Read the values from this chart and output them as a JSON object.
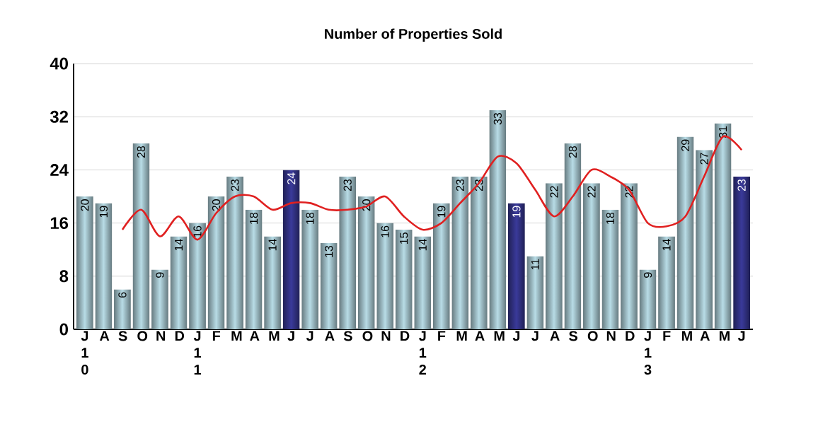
{
  "chart_data": {
    "type": "bar",
    "title": "Number of Properties Sold",
    "categories": [
      "J 1 0",
      "A",
      "S",
      "O",
      "N",
      "D",
      "J 1 1",
      "F",
      "M",
      "A",
      "M",
      "J",
      "J",
      "A",
      "S",
      "O",
      "N",
      "D",
      "J 1 2",
      "F",
      "M",
      "A",
      "M",
      "J",
      "J",
      "A",
      "S",
      "O",
      "N",
      "D",
      "J 1 3",
      "F",
      "M",
      "A",
      "M",
      "J"
    ],
    "series": [
      {
        "values": [
          20,
          19,
          6,
          28,
          9,
          14,
          16,
          20,
          23,
          18,
          14,
          24,
          18,
          13,
          23,
          20,
          16,
          15,
          14,
          19,
          23,
          23,
          33,
          19,
          11,
          22,
          28,
          22,
          18,
          22,
          9,
          14,
          29,
          27,
          31,
          23
        ],
        "value_labels": [
          "20",
          "19",
          "6",
          "28",
          "9",
          "14",
          "16",
          "20",
          "23",
          "18",
          "14",
          "24",
          "18",
          "13",
          "23",
          "20",
          "16",
          "15",
          "14",
          "19",
          "23",
          "23",
          "33",
          "19",
          "11",
          "22",
          "28",
          "22",
          "18",
          "22",
          "9",
          "14",
          "29",
          "27",
          "31",
          "23"
        ],
        "colors": [
          "#b8dce6",
          "#b8dce6",
          "#b8dce6",
          "#b8dce6",
          "#b8dce6",
          "#b8dce6",
          "#b8dce6",
          "#b8dce6",
          "#b8dce6",
          "#b8dce6",
          "#b8dce6",
          "#3a3a9a",
          "#b8dce6",
          "#b8dce6",
          "#b8dce6",
          "#b8dce6",
          "#b8dce6",
          "#b8dce6",
          "#b8dce6",
          "#b8dce6",
          "#b8dce6",
          "#b8dce6",
          "#b8dce6",
          "#3a3a9a",
          "#b8dce6",
          "#b8dce6",
          "#b8dce6",
          "#b8dce6",
          "#b8dce6",
          "#b8dce6",
          "#b8dce6",
          "#b8dce6",
          "#b8dce6",
          "#b8dce6",
          "#b8dce6",
          "#3a3a9a"
        ]
      },
      {
        "type": "line",
        "color": "#e02020",
        "values": [
          null,
          null,
          15,
          18,
          14,
          17,
          13.5,
          17.5,
          20,
          20,
          18,
          19,
          19,
          18,
          18,
          18.5,
          20,
          17,
          15,
          16,
          19,
          22,
          26,
          25,
          21,
          17,
          20,
          24,
          23,
          21,
          16,
          15.5,
          17,
          23,
          29,
          27
        ]
      }
    ],
    "ylim": [
      0,
      40
    ],
    "yticks": [
      0,
      8,
      16,
      24,
      32,
      40
    ],
    "grid": "y"
  }
}
